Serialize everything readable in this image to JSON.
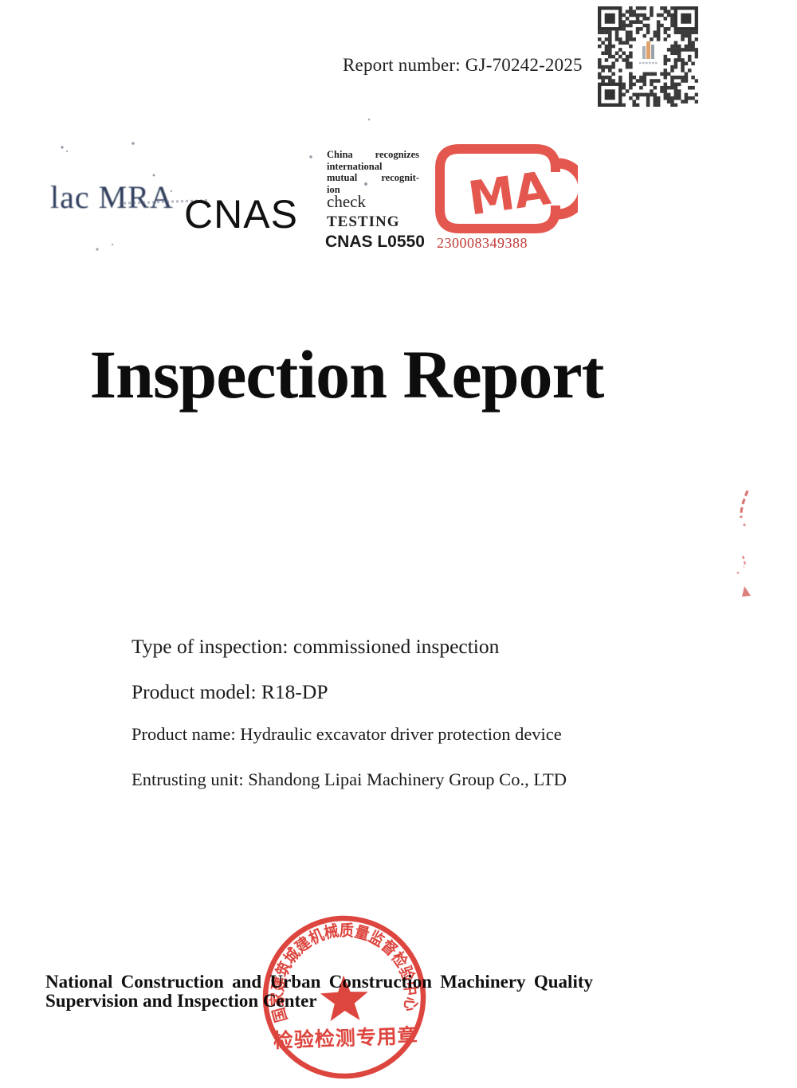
{
  "header": {
    "report_number": "Report number: GJ-70242-2025"
  },
  "logos": {
    "ilac_mra": "lac MRA",
    "cnas": "CNAS",
    "note_lines": [
      "China recognizes",
      "international",
      "mutual recognit-",
      "ion"
    ],
    "check_label": "check",
    "testing_label": "TESTING",
    "cnas_cert": "CNAS L0550",
    "cma_letters": "MA",
    "cma_number": "230008349388"
  },
  "title": "Inspection Report",
  "details": [
    "Type of inspection: commissioned inspection",
    "Product model: R18-DP",
    "Product name: Hydraulic excavator driver protection device",
    "Entrusting unit: Shandong Lipai Machinery Group Co., LTD"
  ],
  "footer": {
    "org_lines": [
      "National Construction and Urban Construction Machinery Quality",
      "Supervision and Inspection Center"
    ]
  },
  "stamp": {
    "arc_text": "国家建筑城建机械质量监督检验中心",
    "bottom_text": "检验检测专用章"
  },
  "colors": {
    "stamp_red": "#dc3c34",
    "cma_red": "#e4574f",
    "number_red": "#bf3b38",
    "ilac_navy": "#32405e"
  }
}
